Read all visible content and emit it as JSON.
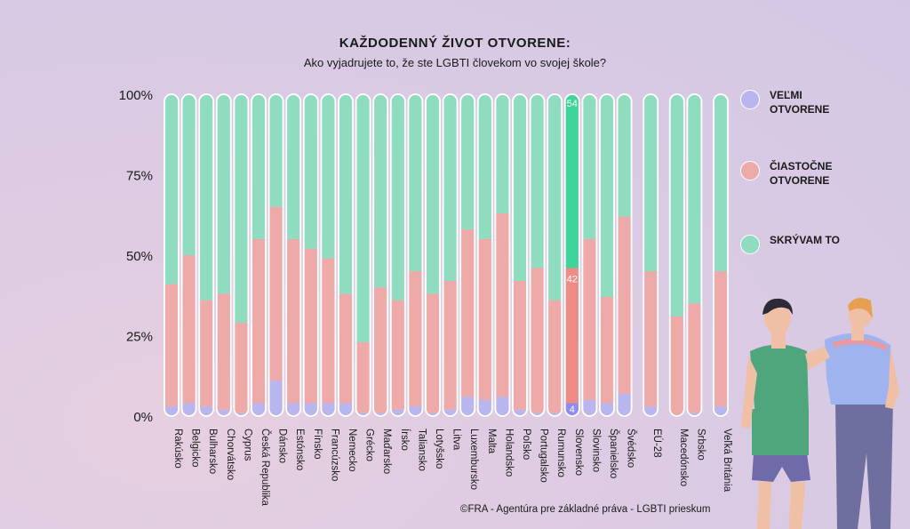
{
  "title": "KAŽDODENNÝ ŽIVOT OTVORENE:",
  "subtitle": "Ako vyjadrujete to, že ste LGBTI človekom vo svojej škole?",
  "legend": [
    {
      "label": "VEĽMI OTVORENE",
      "color": "#b9b6ef"
    },
    {
      "label": "ČIASTOČNE OTVORENE",
      "color": "#eeaaa8"
    },
    {
      "label": "SKRÝVAM TO",
      "color": "#90dcc0"
    }
  ],
  "credit": "©FRA - Agentúra pre základné práva - LGBTI prieskum",
  "chart_data": {
    "type": "bar",
    "stacked": true,
    "ylim": [
      0,
      100
    ],
    "ytick_labels": [
      "100%",
      "75%",
      "50%",
      "25%",
      "0%"
    ],
    "yticks": [
      100,
      75,
      50,
      25,
      0
    ],
    "categories": [
      "Rakúsko",
      "Belgicko",
      "Bulharsko",
      "Chorvátsko",
      "Cyprus",
      "Česká Republika",
      "Dánsko",
      "Estónsko",
      "Fínsko",
      "Francúzsko",
      "Nemecko",
      "Grécko",
      "Maďarsko",
      "Írsko",
      "Taliansko",
      "Lotyšsko",
      "Litva",
      "Luxembursko",
      "Malta",
      "Holandsko",
      "Poľsko",
      "Portugalsko",
      "Rumunsko",
      "Slovensko",
      "Slovinsko",
      "Španielsko",
      "Švédsko",
      "EÚ-28",
      "Macedónsko",
      "Srbsko",
      "Veľká Británia"
    ],
    "groups": [
      27,
      28,
      30
    ],
    "series": [
      {
        "name": "VEĽMI OTVORENE",
        "color": "#b9b6ef",
        "values": [
          3,
          4,
          3,
          2,
          1,
          4,
          11,
          4,
          4,
          4,
          4,
          1,
          1,
          2,
          3,
          1,
          2,
          6,
          5,
          6,
          2,
          1,
          1,
          4,
          5,
          4,
          7,
          3,
          0,
          1,
          3
        ]
      },
      {
        "name": "ČIASTOČNE OTVORENE",
        "color": "#eeaaa8",
        "values": [
          38,
          46,
          33,
          36,
          28,
          51,
          54,
          51,
          48,
          45,
          34,
          22,
          39,
          34,
          42,
          37,
          40,
          52,
          50,
          57,
          40,
          45,
          35,
          42,
          50,
          33,
          55,
          42,
          31,
          34,
          42
        ]
      },
      {
        "name": "SKRÝVAM TO",
        "color": "#90dcc0",
        "values": [
          59,
          50,
          64,
          62,
          71,
          45,
          35,
          45,
          48,
          51,
          62,
          77,
          60,
          64,
          55,
          62,
          58,
          42,
          45,
          37,
          58,
          54,
          64,
          54,
          45,
          63,
          38,
          55,
          69,
          65,
          55
        ]
      }
    ],
    "highlight": {
      "category": "Slovensko",
      "labels": [
        "4",
        "42",
        "54"
      ],
      "colors": [
        "#8f8cf0",
        "#ee8b86",
        "#3fd49a"
      ]
    }
  }
}
